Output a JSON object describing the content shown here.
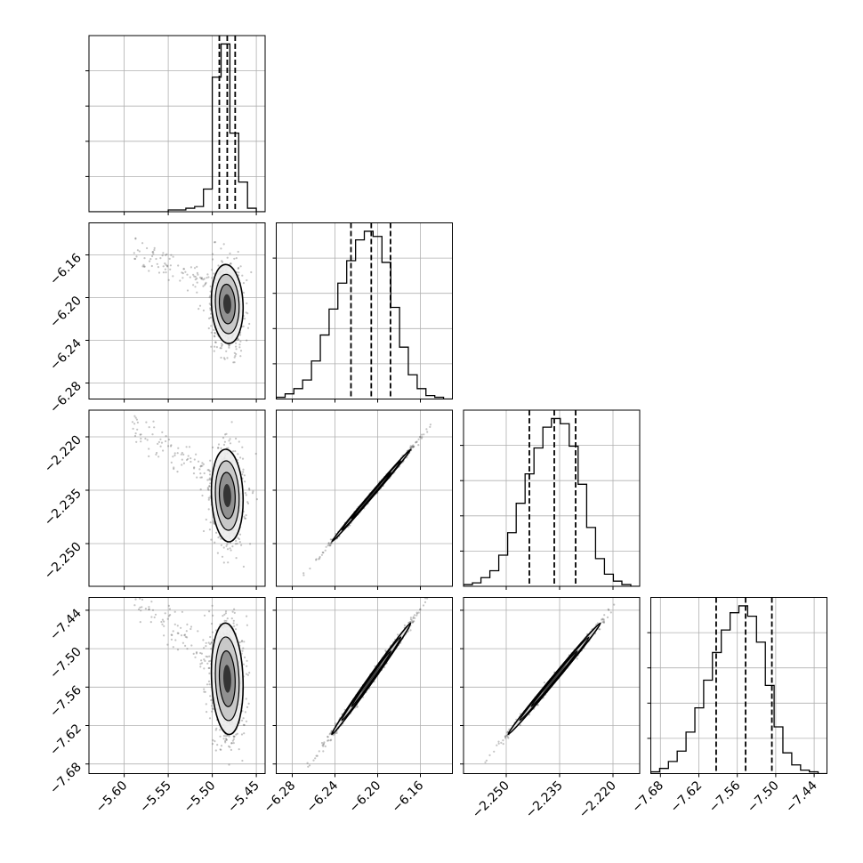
{
  "chart_data": {
    "type": "corner",
    "parameters": [
      {
        "name": "",
        "ticks": [
          -5.6,
          -5.55,
          -5.5,
          -5.45
        ],
        "tick_labels": [
          "−5.60",
          "−5.55",
          "−5.50",
          "−5.45"
        ],
        "range": [
          -5.64,
          -5.44
        ],
        "quantiles": [
          -5.492,
          -5.483,
          -5.474
        ],
        "hist_edges": [
          -5.64,
          -5.63,
          -5.62,
          -5.61,
          -5.6,
          -5.59,
          -5.58,
          -5.57,
          -5.56,
          -5.55,
          -5.54,
          -5.53,
          -5.52,
          -5.51,
          -5.5,
          -5.49,
          -5.48,
          -5.47,
          -5.46,
          -5.45,
          -5.44
        ],
        "hist_counts": [
          0,
          0,
          0,
          0,
          0,
          0,
          0,
          0,
          0,
          1,
          1,
          2,
          3,
          13,
          77,
          96,
          45,
          17,
          2,
          0
        ]
      },
      {
        "name": "",
        "ticks": [
          -6.28,
          -6.24,
          -6.2,
          -6.16
        ],
        "tick_labels": [
          "−6.28",
          "−6.24",
          "−6.20",
          "−6.16"
        ],
        "range": [
          -6.295,
          -6.13
        ],
        "quantiles": [
          -6.225,
          -6.206,
          -6.188
        ],
        "hist_edges": [
          -6.295,
          -6.2867,
          -6.2785,
          -6.2703,
          -6.262,
          -6.2537,
          -6.2455,
          -6.2373,
          -6.229,
          -6.2207,
          -6.2125,
          -6.2043,
          -6.196,
          -6.1877,
          -6.1795,
          -6.1713,
          -6.163,
          -6.1548,
          -6.1465,
          -6.1383,
          -6.13
        ],
        "hist_counts": [
          1,
          3,
          6,
          11,
          22,
          37,
          52,
          67,
          80,
          92,
          97,
          94,
          79,
          53,
          30,
          14,
          6,
          2,
          1,
          0
        ]
      },
      {
        "name": "",
        "ticks": [
          -2.25,
          -2.235,
          -2.22
        ],
        "tick_labels": [
          "−2.250",
          "−2.235",
          "−2.220"
        ],
        "range": [
          -2.262,
          -2.2125
        ],
        "quantiles": [
          -2.2435,
          -2.2365,
          -2.2305
        ],
        "hist_edges": [
          -2.262,
          -2.2595,
          -2.2571,
          -2.2546,
          -2.2521,
          -2.2496,
          -2.2472,
          -2.2447,
          -2.2422,
          -2.2397,
          -2.2373,
          -2.2348,
          -2.2323,
          -2.2298,
          -2.2274,
          -2.2249,
          -2.2224,
          -2.2199,
          -2.2175,
          -2.215,
          -2.2125
        ],
        "hist_counts": [
          1,
          2,
          5,
          9,
          18,
          31,
          48,
          65,
          80,
          92,
          97,
          94,
          81,
          59,
          34,
          16,
          7,
          3,
          1,
          0
        ]
      },
      {
        "name": "",
        "ticks": [
          -7.68,
          -7.62,
          -7.56,
          -7.5,
          -7.44
        ],
        "tick_labels": [
          "−7.68",
          "−7.62",
          "−7.56",
          "−7.50",
          "−7.44"
        ],
        "range": [
          -7.695,
          -7.42
        ],
        "quantiles": [
          -7.593,
          -7.547,
          -7.506
        ],
        "hist_edges": [
          -7.695,
          -7.6812,
          -7.6675,
          -7.6538,
          -7.64,
          -7.6262,
          -7.6125,
          -7.5988,
          -7.585,
          -7.5712,
          -7.5575,
          -7.5438,
          -7.53,
          -7.5162,
          -7.5025,
          -7.4888,
          -7.475,
          -7.4612,
          -7.4475,
          -7.4338,
          -7.42
        ],
        "hist_counts": [
          1,
          3,
          7,
          13,
          24,
          38,
          54,
          70,
          83,
          93,
          97,
          91,
          76,
          51,
          27,
          12,
          5,
          2,
          1,
          0
        ]
      }
    ],
    "correlations": {
      "1-0": -0.1,
      "2-0": -0.1,
      "3-0": -0.12,
      "2-1": 0.998,
      "3-1": 0.996,
      "3-2": 0.997
    },
    "grid": true,
    "quantile_style": "dashed"
  }
}
